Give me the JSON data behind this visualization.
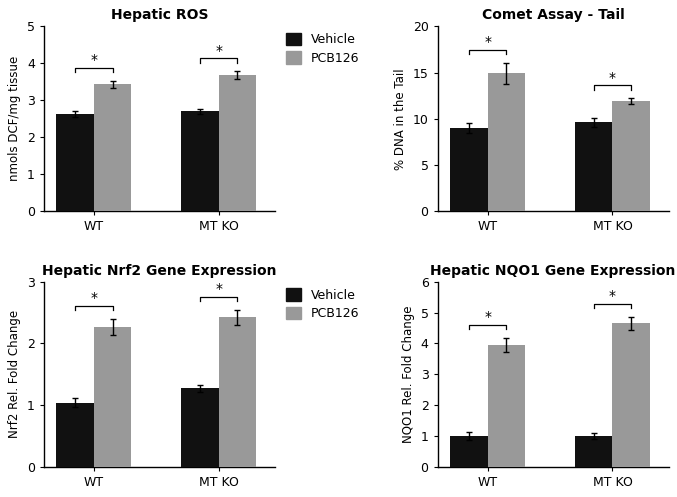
{
  "panels": [
    {
      "title": "Hepatic ROS",
      "ylabel": "nmols DCF/mg tissue",
      "ylim": [
        0,
        5
      ],
      "yticks": [
        0,
        1,
        2,
        3,
        4,
        5
      ],
      "groups": [
        "WT",
        "MT KO"
      ],
      "vehicle_vals": [
        2.63,
        2.7
      ],
      "pcb126_vals": [
        3.43,
        3.68
      ],
      "vehicle_err": [
        0.07,
        0.06
      ],
      "pcb126_err": [
        0.1,
        0.1
      ],
      "show_legend": true
    },
    {
      "title": "Comet Assay - Tail",
      "ylabel": "% DNA in the Tail",
      "ylim": [
        0,
        20
      ],
      "yticks": [
        0,
        5,
        10,
        15,
        20
      ],
      "groups": [
        "WT",
        "MT KO"
      ],
      "vehicle_vals": [
        9.0,
        9.6
      ],
      "pcb126_vals": [
        14.9,
        11.9
      ],
      "vehicle_err": [
        0.5,
        0.5
      ],
      "pcb126_err": [
        1.1,
        0.3
      ],
      "show_legend": false
    },
    {
      "title": "Hepatic Nrf2 Gene Expression",
      "ylabel": "Nrf2 Rel. Fold Change",
      "ylim": [
        0,
        3
      ],
      "yticks": [
        0,
        1,
        2,
        3
      ],
      "groups": [
        "WT",
        "MT KO"
      ],
      "vehicle_vals": [
        1.04,
        1.27
      ],
      "pcb126_vals": [
        2.27,
        2.42
      ],
      "vehicle_err": [
        0.07,
        0.06
      ],
      "pcb126_err": [
        0.13,
        0.12
      ],
      "show_legend": true
    },
    {
      "title": "Hepatic NQO1 Gene Expression",
      "ylabel": "NQO1 Rel. Fold Change",
      "ylim": [
        0,
        6
      ],
      "yticks": [
        0,
        1,
        2,
        3,
        4,
        5,
        6
      ],
      "groups": [
        "WT",
        "MT KO"
      ],
      "vehicle_vals": [
        1.0,
        1.0
      ],
      "pcb126_vals": [
        3.95,
        4.65
      ],
      "vehicle_err": [
        0.12,
        0.1
      ],
      "pcb126_err": [
        0.22,
        0.22
      ],
      "show_legend": false
    }
  ],
  "bar_width": 0.3,
  "vehicle_color": "#111111",
  "pcb126_color": "#999999",
  "background_color": "#ffffff",
  "legend_labels": [
    "Vehicle",
    "PCB126"
  ],
  "fontsize_title": 10,
  "fontsize_label": 8.5,
  "fontsize_tick": 9,
  "fontsize_legend": 9
}
